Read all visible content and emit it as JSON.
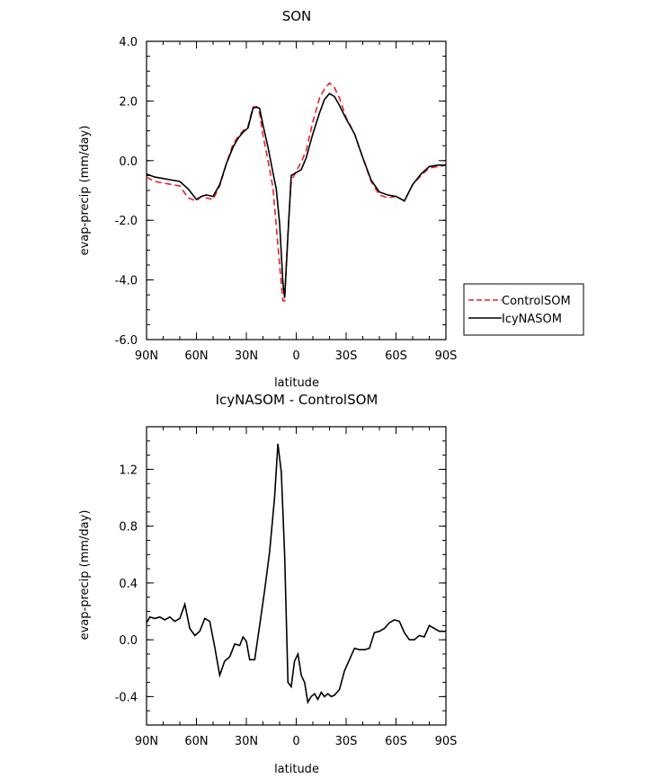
{
  "chart_data": [
    {
      "type": "line",
      "title": "SON",
      "xlabel": "latitude",
      "ylabel": "evap-precip (mm/day)",
      "xticks": [
        {
          "value": 90,
          "label": "90N"
        },
        {
          "value": 60,
          "label": "60N"
        },
        {
          "value": 30,
          "label": "30N"
        },
        {
          "value": 0,
          "label": "0"
        },
        {
          "value": -30,
          "label": "30S"
        },
        {
          "value": -60,
          "label": "60S"
        },
        {
          "value": -90,
          "label": "90S"
        }
      ],
      "xlim": [
        90,
        -90
      ],
      "ylim": [
        -6,
        4
      ],
      "yticks": [
        {
          "value": 4,
          "label": "4.0"
        },
        {
          "value": 2,
          "label": "2.0"
        },
        {
          "value": 0,
          "label": "0.0"
        },
        {
          "value": -2,
          "label": "-2.0"
        },
        {
          "value": -4,
          "label": "-4.0"
        },
        {
          "value": -6,
          "label": "-6.0"
        }
      ],
      "legend_position": "right",
      "series": [
        {
          "name": "ControlSOM",
          "color": "#e8202a",
          "dash": true,
          "x": [
            90,
            85,
            80,
            75,
            70,
            65,
            60,
            57,
            54,
            50,
            46,
            42,
            38,
            35,
            32,
            29,
            26,
            24,
            22,
            20,
            17,
            14,
            12,
            10,
            8,
            7,
            5,
            3,
            0,
            -3,
            -6,
            -10,
            -14,
            -17,
            -20,
            -23,
            -26,
            -30,
            -35,
            -40,
            -45,
            -50,
            -55,
            -60,
            -65,
            -70,
            -75,
            -80,
            -85,
            -90
          ],
          "y": [
            -0.55,
            -0.7,
            -0.75,
            -0.8,
            -0.85,
            -1.25,
            -1.35,
            -1.2,
            -1.25,
            -1.3,
            -0.85,
            -0.1,
            0.55,
            0.8,
            1.0,
            1.15,
            1.8,
            1.8,
            1.6,
            0.85,
            0.0,
            -0.9,
            -2.2,
            -3.5,
            -4.7,
            -4.7,
            -2.4,
            -0.7,
            -0.35,
            -0.05,
            0.35,
            1.3,
            2.1,
            2.4,
            2.6,
            2.45,
            2.1,
            1.45,
            0.9,
            0.1,
            -0.7,
            -1.15,
            -1.25,
            -1.2,
            -1.35,
            -0.8,
            -0.5,
            -0.25,
            -0.2,
            -0.15
          ]
        },
        {
          "name": "IcyNASOM",
          "color": "#000000",
          "dash": false,
          "x": [
            90,
            85,
            80,
            75,
            70,
            65,
            60,
            57,
            54,
            50,
            46,
            42,
            38,
            35,
            32,
            29,
            26,
            24,
            22,
            20,
            17,
            14,
            12,
            10,
            8,
            7,
            5,
            3,
            0,
            -3,
            -6,
            -10,
            -14,
            -17,
            -20,
            -23,
            -26,
            -30,
            -35,
            -40,
            -45,
            -50,
            -55,
            -60,
            -65,
            -70,
            -75,
            -80,
            -85,
            -90
          ],
          "y": [
            -0.45,
            -0.55,
            -0.6,
            -0.65,
            -0.7,
            -0.95,
            -1.3,
            -1.2,
            -1.15,
            -1.2,
            -0.8,
            -0.1,
            0.45,
            0.75,
            0.95,
            1.1,
            1.75,
            1.8,
            1.75,
            1.2,
            0.45,
            -0.4,
            -0.95,
            -2.1,
            -4.1,
            -4.6,
            -2.5,
            -0.5,
            -0.4,
            -0.3,
            0.1,
            0.9,
            1.6,
            2.05,
            2.25,
            2.15,
            1.85,
            1.4,
            0.9,
            0.1,
            -0.65,
            -1.05,
            -1.15,
            -1.2,
            -1.35,
            -0.8,
            -0.45,
            -0.2,
            -0.15,
            -0.15
          ]
        }
      ]
    },
    {
      "type": "line",
      "title": "IcyNASOM - ControlSOM",
      "xlabel": "latitude",
      "ylabel": "evap-precip (mm/day)",
      "xticks": [
        {
          "value": 90,
          "label": "90N"
        },
        {
          "value": 60,
          "label": "60N"
        },
        {
          "value": 30,
          "label": "30N"
        },
        {
          "value": 0,
          "label": "0"
        },
        {
          "value": -30,
          "label": "30S"
        },
        {
          "value": -60,
          "label": "60S"
        },
        {
          "value": -90,
          "label": "90S"
        }
      ],
      "xlim": [
        90,
        -90
      ],
      "ylim": [
        -0.6,
        1.5
      ],
      "yticks": [
        {
          "value": 1.2,
          "label": "1.2"
        },
        {
          "value": 0.8,
          "label": "0.8"
        },
        {
          "value": 0.4,
          "label": "0.4"
        },
        {
          "value": 0.0,
          "label": "0.0"
        },
        {
          "value": -0.4,
          "label": "-0.4"
        }
      ],
      "series": [
        {
          "color": "#000000",
          "dash": false,
          "x": [
            90,
            88,
            85,
            82,
            79,
            76,
            73,
            70,
            67,
            64,
            61,
            58,
            55,
            52,
            49,
            46,
            43,
            40,
            37,
            34,
            32,
            30,
            28,
            25,
            22,
            19,
            16,
            13,
            11,
            9,
            7,
            5,
            3,
            1,
            -1,
            -3,
            -5,
            -7,
            -9,
            -11,
            -13,
            -15,
            -17,
            -19,
            -21,
            -23,
            -26,
            -29,
            -32,
            -35,
            -38,
            -41,
            -44,
            -47,
            -50,
            -53,
            -56,
            -59,
            -62,
            -65,
            -68,
            -71,
            -74,
            -77,
            -80,
            -83,
            -86,
            -90
          ],
          "y": [
            0.12,
            0.16,
            0.15,
            0.16,
            0.14,
            0.16,
            0.13,
            0.15,
            0.25,
            0.08,
            0.03,
            0.06,
            0.15,
            0.13,
            -0.05,
            -0.25,
            -0.15,
            -0.12,
            -0.03,
            -0.04,
            0.02,
            -0.01,
            -0.14,
            -0.14,
            0.1,
            0.35,
            0.62,
            1.0,
            1.38,
            1.18,
            0.6,
            -0.3,
            -0.33,
            -0.15,
            -0.1,
            -0.25,
            -0.3,
            -0.44,
            -0.4,
            -0.38,
            -0.42,
            -0.37,
            -0.4,
            -0.38,
            -0.4,
            -0.39,
            -0.35,
            -0.22,
            -0.14,
            -0.06,
            -0.07,
            -0.07,
            -0.06,
            0.05,
            0.06,
            0.08,
            0.12,
            0.14,
            0.13,
            0.05,
            0.0,
            0.0,
            0.03,
            0.02,
            0.1,
            0.08,
            0.06,
            0.06
          ]
        }
      ]
    }
  ]
}
